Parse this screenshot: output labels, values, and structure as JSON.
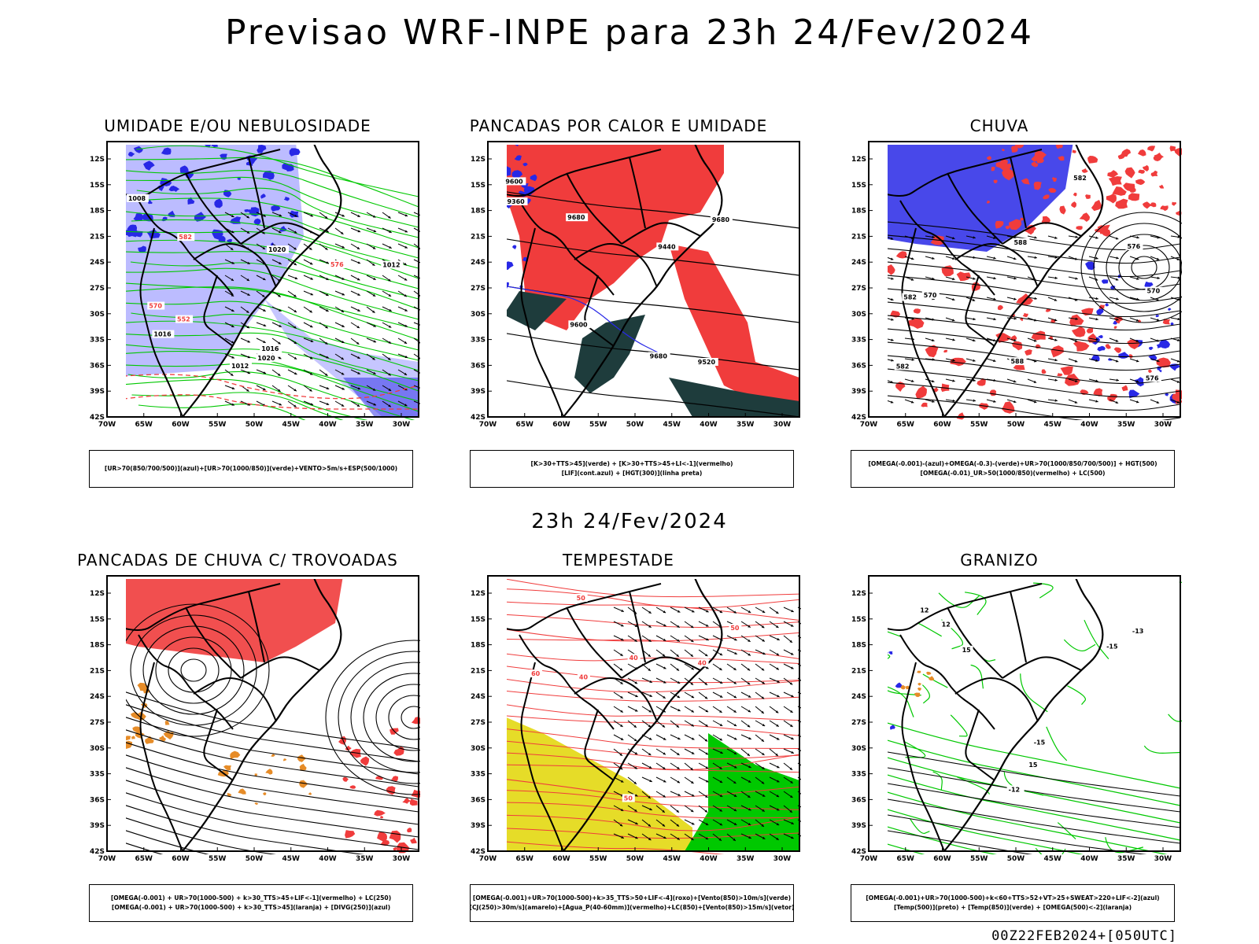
{
  "title": "Previsao WRF-INPE  para 23h 24/Fev/2024",
  "subtitle": "23h 24/Fev/2024",
  "footer": "00Z22FEB2024+[050UTC]",
  "axes": {
    "lat_labels": [
      "12S",
      "15S",
      "18S",
      "21S",
      "24S",
      "27S",
      "30S",
      "33S",
      "36S",
      "39S",
      "42S"
    ],
    "lon_labels": [
      "70W",
      "65W",
      "60W",
      "55W",
      "50W",
      "45W",
      "40W",
      "35W",
      "30W"
    ]
  },
  "colors": {
    "red": "#f03c3c",
    "green": "#00c800",
    "blue": "#2828e6",
    "lightblue": "#a0a0ff",
    "orange": "#e68c28",
    "yellow": "#e6dc28",
    "darkteal": "#1e3c3c",
    "black": "#000000"
  },
  "panels": [
    {
      "id": "umidade",
      "title": "UMIDADE E/OU NEBULOSIDADE",
      "legend": [
        "[UR>70(850/700/500)](azul)+[UR>70(1000/850)](verde)+VENTO>5m/s+ESP(500/1000)"
      ],
      "contour_labels": [
        "1012",
        "1016",
        "1020",
        "1008",
        "1012",
        "1016",
        "1020",
        "570",
        "576",
        "582",
        "552"
      ]
    },
    {
      "id": "pancadas_calor",
      "title": "PANCADAS POR CALOR E UMIDADE",
      "legend": [
        "[K>30+TTS>45](verde) + [K>30+TTS>45+LI<-1](vermelho)",
        "[LIF](cont.azul) + [HGT(300)](linha preta)"
      ],
      "contour_labels": [
        "9680",
        "9600",
        "9520",
        "9440",
        "9360",
        "9680",
        "9600",
        "9680"
      ]
    },
    {
      "id": "chuva",
      "title": "CHUVA",
      "legend": [
        "[OMEGA(-0.001)-(azul)+OMEGA(-0.3)-(verde)+UR>70(1000/850/700/500)] + HGT(500)",
        "[OMEGA(-0.01)_UR>50(1000/850)(vermelho) + LC(500)"
      ],
      "contour_labels": [
        "582",
        "588",
        "576",
        "570",
        "582",
        "576",
        "570",
        "588",
        "582"
      ]
    },
    {
      "id": "trovoadas",
      "title": "PANCADAS DE CHUVA C/ TROVOADAS",
      "legend": [
        "[OMEGA(-0.001) + UR>70(1000-500) + k>30_TTS>45+LIF<-1](vermelho) + LC(250)",
        "[OMEGA(-0.001) + UR>70(1000-500) + k>30_TTS>45](laranja) + [DIVG(250)](azul)"
      ],
      "contour_labels": []
    },
    {
      "id": "tempestade",
      "title": "TEMPESTADE",
      "legend": [
        "[OMEGA(-0.001)+UR>70(1000-500)+k>35_TTS>50+LIF<-4](roxo)+[Vento(850)>10m/s](verde)",
        "[CJ(250)>30m/s](amarelo)+[Agua_P(40-60mm)](vermelho)+LC(850)+[Vento(850)>15m/s](vetor)"
      ],
      "contour_labels": [
        "40",
        "50",
        "40",
        "50",
        "60",
        "50",
        "40"
      ]
    },
    {
      "id": "granizo",
      "title": "GRANIZO",
      "legend": [
        "[OMEGA(-0.001)+UR>70(1000-500)+k<60+TTS>52+VT>25+SWEAT>220+LIF<-2](azul)",
        "[Temp(500)](preto) + [Temp(850)](verde) + [OMEGA(500)<-2](laranja)"
      ],
      "contour_labels": [
        "-15",
        "-13",
        "-12",
        "-15",
        "12",
        "15",
        "12",
        "15"
      ]
    }
  ]
}
